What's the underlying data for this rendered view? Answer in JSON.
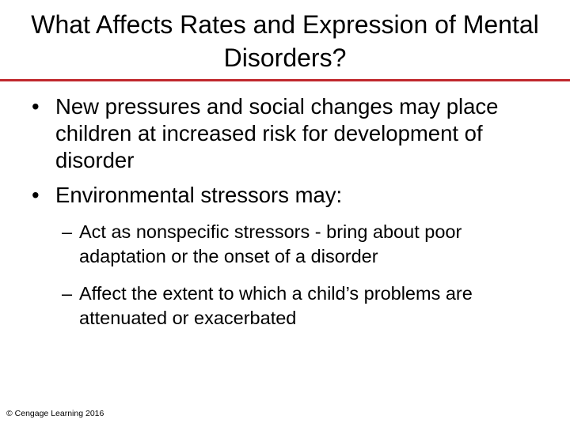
{
  "slide": {
    "title": "What Affects Rates and Expression of Mental Disorders?",
    "accent_color": "#c0282d",
    "bullets": [
      {
        "marker": "•",
        "text": "New pressures and social changes may place children at increased risk for development of disorder"
      },
      {
        "marker": "•",
        "text": "Environmental stressors may:"
      }
    ],
    "sub_bullets": [
      {
        "marker": "–",
        "text": "Act as nonspecific stressors - bring about poor adaptation or the onset of a disorder"
      },
      {
        "marker": "–",
        "text": "Affect the extent to which a child’s problems are attenuated or exacerbated"
      }
    ],
    "footer": "© Cengage Learning 2016"
  }
}
